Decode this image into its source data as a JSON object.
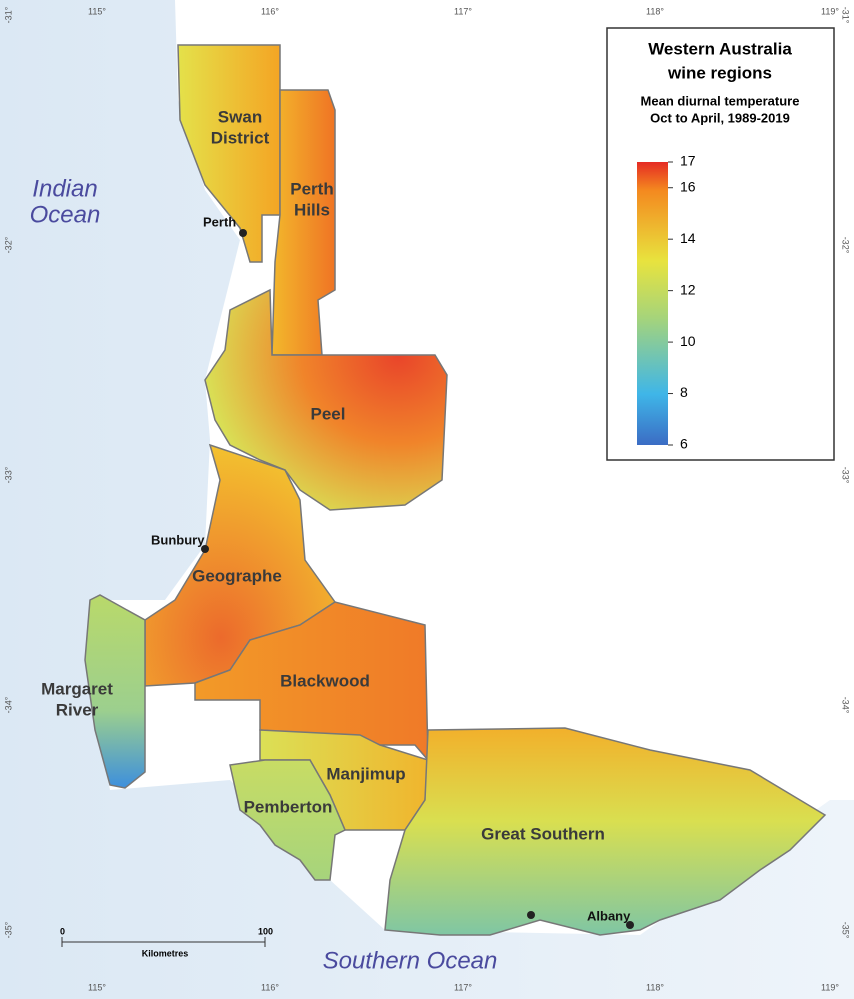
{
  "map": {
    "graticule": {
      "longitudes": [
        "115°",
        "116°",
        "117°",
        "118°",
        "119°"
      ],
      "latitudes": [
        "-31°",
        "-32°",
        "-33°",
        "-34°",
        "-35°"
      ]
    },
    "oceans": [
      [
        "Indian",
        "Ocean"
      ],
      [
        "Southern Ocean"
      ]
    ],
    "regions": [
      [
        "Swan",
        "District"
      ],
      [
        "Perth",
        "Hills"
      ],
      [
        "Peel"
      ],
      [
        "Geographe"
      ],
      [
        "Margaret",
        "River"
      ],
      [
        "Blackwood"
      ],
      [
        "Manjimup"
      ],
      [
        "Pemberton"
      ],
      [
        "Great Southern"
      ]
    ],
    "cities": [
      "Perth",
      "Bunbury",
      "Albany"
    ],
    "scale_bar": {
      "start": "0",
      "end": "100",
      "unit": "Kilometres"
    },
    "legend": {
      "title": [
        "Western Australia",
        "wine regions"
      ],
      "subtitle": [
        "Mean diurnal temperature",
        "Oct to April, 1989-2019"
      ],
      "colorbar": {
        "min": 6,
        "max": 17,
        "ticks": [
          6,
          8,
          10,
          12,
          14,
          16,
          17
        ]
      }
    }
  }
}
